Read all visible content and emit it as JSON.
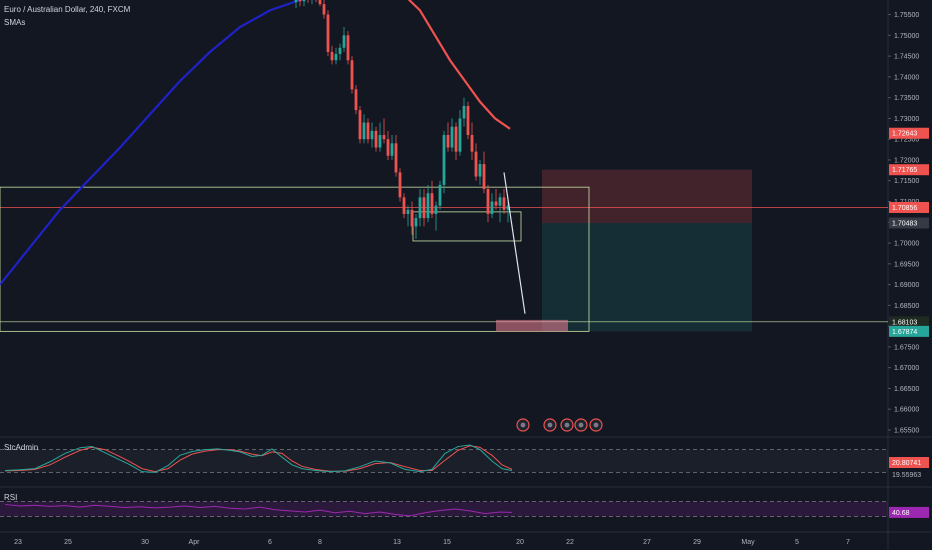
{
  "header": {
    "symbol_line": "Euro / Australian Dollar, 240, FXCM",
    "indicator": "SMAs"
  },
  "colors": {
    "background": "#131722",
    "up": "#26a69a",
    "down": "#ef5350",
    "sma_fast": "#ef5350",
    "sma_slow": "#1e22c8",
    "zone_line": "#c9e4a5",
    "stoch_k": "#26a69a",
    "stoch_d": "#ef5350",
    "rsi": "#9c27b0"
  },
  "panes": {
    "stoch": {
      "label": "StcAdmin",
      "values": [
        "20.80741",
        "19.55963"
      ]
    },
    "rsi": {
      "label": "RSI",
      "value": "40.68"
    }
  },
  "chart_data": {
    "type": "candlestick",
    "title": "Euro / Australian Dollar, 240, FXCM",
    "ylim": [
      1.655,
      1.7585
    ],
    "y_ticks": [
      "1.75500",
      "1.75000",
      "1.74500",
      "1.74000",
      "1.73500",
      "1.73000",
      "1.72500",
      "1.72000",
      "1.71500",
      "1.71000",
      "1.70500",
      "1.70000",
      "1.69500",
      "1.69000",
      "1.68500",
      "1.68000",
      "1.67500",
      "1.67000",
      "1.66500",
      "1.66000",
      "1.65500"
    ],
    "x_ticks": [
      "23",
      "25",
      "30",
      "Apr",
      "6",
      "8",
      "13",
      "15",
      "20",
      "22",
      "27",
      "29",
      "May",
      "5",
      "7"
    ],
    "price_labels": [
      {
        "text": "1.72643",
        "value": 1.72643,
        "color": "#ef5350"
      },
      {
        "text": "1.71765",
        "value": 1.71765,
        "color": "#ef5350"
      },
      {
        "text": "1.70856",
        "value": 1.70856,
        "color": "#ef5350"
      },
      {
        "text": "1.70483",
        "value": 1.70483,
        "color": "#363a45"
      },
      {
        "text": "1.68103",
        "value": 1.68103,
        "color": "#1f2a22"
      },
      {
        "text": "1.67874",
        "value": 1.67874,
        "color": "#26a69a"
      }
    ],
    "zones": {
      "upper_box": [
        1.71345,
        1.67874
      ],
      "small_box": [
        1.7075,
        1.7005
      ],
      "stop_zone": [
        1.71765,
        1.70483
      ],
      "target_zone": [
        1.70483,
        1.67874
      ],
      "current_line": 1.70856,
      "target_line": 1.68103
    },
    "series": [
      {
        "name": "SMAs",
        "points": [
          [
            0,
            1.69
          ],
          [
            30,
            1.699
          ],
          [
            60,
            1.708
          ],
          [
            90,
            1.7155
          ],
          [
            120,
            1.723
          ],
          [
            150,
            1.731
          ],
          [
            180,
            1.739
          ],
          [
            210,
            1.746
          ],
          [
            240,
            1.752
          ],
          [
            270,
            1.756
          ],
          [
            300,
            1.7585
          ],
          [
            320,
            1.7595
          ]
        ]
      },
      {
        "name": "SMAs",
        "points": [
          [
            405,
            1.7595
          ],
          [
            420,
            1.756
          ],
          [
            435,
            1.75
          ],
          [
            450,
            1.744
          ],
          [
            465,
            1.739
          ],
          [
            480,
            1.734
          ],
          [
            495,
            1.73
          ],
          [
            510,
            1.7275
          ]
        ]
      }
    ],
    "candles": [
      [
        296,
        1.758,
        1.7595,
        1.7565,
        1.7588
      ],
      [
        300,
        1.7588,
        1.76,
        1.757,
        1.7582
      ],
      [
        304,
        1.7582,
        1.7598,
        1.757,
        1.759
      ],
      [
        308,
        1.759,
        1.7602,
        1.7578,
        1.7585
      ],
      [
        312,
        1.7585,
        1.76,
        1.7575,
        1.7592
      ],
      [
        316,
        1.7592,
        1.7605,
        1.758,
        1.7588
      ],
      [
        320,
        1.7588,
        1.76,
        1.757,
        1.7575
      ],
      [
        324,
        1.7575,
        1.759,
        1.754,
        1.755
      ],
      [
        328,
        1.755,
        1.756,
        1.745,
        1.746
      ],
      [
        332,
        1.746,
        1.7475,
        1.743,
        1.744
      ],
      [
        336,
        1.744,
        1.747,
        1.743,
        1.7455
      ],
      [
        340,
        1.7455,
        1.748,
        1.744,
        1.747
      ],
      [
        344,
        1.747,
        1.752,
        1.746,
        1.75
      ],
      [
        348,
        1.75,
        1.751,
        1.743,
        1.744
      ],
      [
        352,
        1.744,
        1.745,
        1.736,
        1.737
      ],
      [
        356,
        1.737,
        1.738,
        1.731,
        1.732
      ],
      [
        360,
        1.732,
        1.733,
        1.724,
        1.725
      ],
      [
        364,
        1.725,
        1.731,
        1.724,
        1.729
      ],
      [
        368,
        1.729,
        1.73,
        1.724,
        1.725
      ],
      [
        372,
        1.725,
        1.729,
        1.723,
        1.727
      ],
      [
        376,
        1.727,
        1.728,
        1.722,
        1.723
      ],
      [
        380,
        1.723,
        1.729,
        1.722,
        1.726
      ],
      [
        384,
        1.726,
        1.73,
        1.724,
        1.725
      ],
      [
        388,
        1.725,
        1.727,
        1.72,
        1.721
      ],
      [
        392,
        1.721,
        1.726,
        1.72,
        1.724
      ],
      [
        396,
        1.724,
        1.726,
        1.716,
        1.717
      ],
      [
        400,
        1.717,
        1.718,
        1.71,
        1.711
      ],
      [
        404,
        1.711,
        1.712,
        1.706,
        1.707
      ],
      [
        408,
        1.707,
        1.709,
        1.704,
        1.708
      ],
      [
        412,
        1.708,
        1.71,
        1.702,
        1.704
      ],
      [
        416,
        1.704,
        1.707,
        1.701,
        1.706
      ],
      [
        420,
        1.706,
        1.713,
        1.704,
        1.711
      ],
      [
        424,
        1.711,
        1.713,
        1.704,
        1.706
      ],
      [
        428,
        1.706,
        1.714,
        1.705,
        1.712
      ],
      [
        432,
        1.712,
        1.715,
        1.706,
        1.707
      ],
      [
        436,
        1.707,
        1.71,
        1.703,
        1.709
      ],
      [
        440,
        1.709,
        1.715,
        1.708,
        1.714
      ],
      [
        444,
        1.714,
        1.727,
        1.712,
        1.726
      ],
      [
        448,
        1.726,
        1.729,
        1.722,
        1.723
      ],
      [
        452,
        1.723,
        1.73,
        1.722,
        1.728
      ],
      [
        456,
        1.728,
        1.729,
        1.72,
        1.722
      ],
      [
        460,
        1.722,
        1.732,
        1.721,
        1.73
      ],
      [
        464,
        1.73,
        1.735,
        1.728,
        1.733
      ],
      [
        468,
        1.733,
        1.734,
        1.725,
        1.726
      ],
      [
        472,
        1.726,
        1.729,
        1.72,
        1.722
      ],
      [
        476,
        1.722,
        1.724,
        1.715,
        1.716
      ],
      [
        480,
        1.716,
        1.72,
        1.714,
        1.719
      ],
      [
        484,
        1.719,
        1.722,
        1.712,
        1.713
      ],
      [
        488,
        1.713,
        1.714,
        1.705,
        1.707
      ],
      [
        492,
        1.707,
        1.712,
        1.706,
        1.71
      ],
      [
        496,
        1.71,
        1.713,
        1.708,
        1.709
      ],
      [
        500,
        1.709,
        1.712,
        1.705,
        1.711
      ],
      [
        504,
        1.711,
        1.713,
        1.707,
        1.708
      ],
      [
        508,
        1.708,
        1.711,
        1.705,
        1.709
      ]
    ],
    "projection": [
      [
        504,
        1.717
      ],
      [
        525,
        1.683
      ]
    ],
    "stoch_k": [
      [
        5,
        25
      ],
      [
        20,
        27
      ],
      [
        35,
        30
      ],
      [
        50,
        48
      ],
      [
        65,
        70
      ],
      [
        80,
        85
      ],
      [
        92,
        88
      ],
      [
        105,
        72
      ],
      [
        118,
        55
      ],
      [
        130,
        40
      ],
      [
        142,
        22
      ],
      [
        155,
        20
      ],
      [
        168,
        38
      ],
      [
        180,
        65
      ],
      [
        192,
        75
      ],
      [
        205,
        80
      ],
      [
        218,
        82
      ],
      [
        230,
        78
      ],
      [
        240,
        74
      ],
      [
        252,
        62
      ],
      [
        262,
        65
      ],
      [
        272,
        82
      ],
      [
        282,
        60
      ],
      [
        292,
        40
      ],
      [
        302,
        30
      ],
      [
        315,
        25
      ],
      [
        330,
        22
      ],
      [
        345,
        24
      ],
      [
        360,
        35
      ],
      [
        375,
        50
      ],
      [
        390,
        45
      ],
      [
        405,
        28
      ],
      [
        420,
        22
      ],
      [
        432,
        28
      ],
      [
        445,
        70
      ],
      [
        458,
        88
      ],
      [
        470,
        92
      ],
      [
        480,
        80
      ],
      [
        492,
        50
      ],
      [
        502,
        30
      ],
      [
        512,
        25
      ]
    ],
    "stoch_d": [
      [
        5,
        24
      ],
      [
        20,
        25
      ],
      [
        35,
        28
      ],
      [
        50,
        40
      ],
      [
        65,
        60
      ],
      [
        80,
        78
      ],
      [
        92,
        86
      ],
      [
        105,
        80
      ],
      [
        118,
        64
      ],
      [
        130,
        48
      ],
      [
        142,
        30
      ],
      [
        155,
        22
      ],
      [
        168,
        30
      ],
      [
        180,
        52
      ],
      [
        192,
        68
      ],
      [
        205,
        76
      ],
      [
        218,
        80
      ],
      [
        230,
        80
      ],
      [
        240,
        76
      ],
      [
        252,
        68
      ],
      [
        262,
        64
      ],
      [
        272,
        74
      ],
      [
        282,
        70
      ],
      [
        292,
        50
      ],
      [
        302,
        36
      ],
      [
        315,
        28
      ],
      [
        330,
        23
      ],
      [
        345,
        23
      ],
      [
        360,
        30
      ],
      [
        375,
        43
      ],
      [
        390,
        46
      ],
      [
        405,
        35
      ],
      [
        420,
        25
      ],
      [
        432,
        25
      ],
      [
        445,
        52
      ],
      [
        458,
        78
      ],
      [
        470,
        90
      ],
      [
        480,
        86
      ],
      [
        492,
        65
      ],
      [
        502,
        40
      ],
      [
        512,
        28
      ]
    ],
    "rsi": [
      [
        5,
        62
      ],
      [
        20,
        58
      ],
      [
        35,
        60
      ],
      [
        50,
        57
      ],
      [
        65,
        59
      ],
      [
        80,
        55
      ],
      [
        95,
        60
      ],
      [
        110,
        57
      ],
      [
        125,
        54
      ],
      [
        140,
        56
      ],
      [
        155,
        53
      ],
      [
        170,
        55
      ],
      [
        185,
        58
      ],
      [
        200,
        54
      ],
      [
        215,
        57
      ],
      [
        230,
        52
      ],
      [
        245,
        50
      ],
      [
        260,
        55
      ],
      [
        275,
        48
      ],
      [
        290,
        45
      ],
      [
        305,
        42
      ],
      [
        320,
        47
      ],
      [
        335,
        40
      ],
      [
        350,
        44
      ],
      [
        365,
        38
      ],
      [
        380,
        42
      ],
      [
        395,
        36
      ],
      [
        410,
        32
      ],
      [
        425,
        40
      ],
      [
        440,
        46
      ],
      [
        455,
        50
      ],
      [
        470,
        45
      ],
      [
        485,
        38
      ],
      [
        500,
        42
      ],
      [
        512,
        41
      ]
    ]
  }
}
